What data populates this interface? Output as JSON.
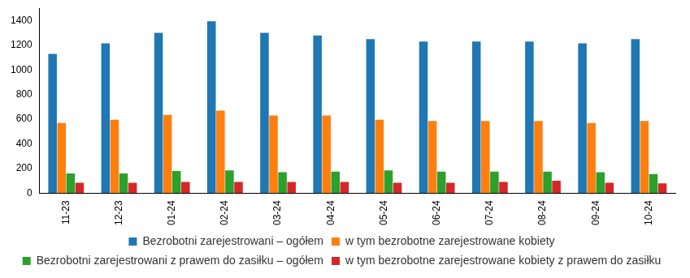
{
  "chart_data": {
    "type": "bar",
    "categories": [
      "11-23",
      "12-23",
      "01-24",
      "02-24",
      "03-24",
      "04-24",
      "05-24",
      "06-24",
      "07-24",
      "08-24",
      "09-24",
      "10-24"
    ],
    "series": [
      {
        "name": "Bezrobotni zarejestrowani – ogółem",
        "color": "#1f77b4",
        "values": [
          1130,
          1215,
          1300,
          1395,
          1300,
          1280,
          1250,
          1230,
          1230,
          1230,
          1215,
          1250
        ]
      },
      {
        "name": "w tym bezrobotne zarejestrowane kobiety",
        "color": "#ff7f0e",
        "values": [
          570,
          595,
          635,
          670,
          630,
          630,
          595,
          585,
          585,
          585,
          570,
          585
        ]
      },
      {
        "name": "Bezrobotni zarejestrowani z prawem do zasiłku – ogółem",
        "color": "#2ca02c",
        "values": [
          160,
          160,
          180,
          185,
          170,
          175,
          185,
          175,
          175,
          175,
          170,
          155
        ]
      },
      {
        "name": "w tym bezrobotne zarejestrowane kobiety z prawem do zasiłku",
        "color": "#d62728",
        "values": [
          85,
          85,
          90,
          90,
          90,
          90,
          85,
          85,
          90,
          100,
          85,
          80
        ]
      }
    ],
    "ylim": [
      0,
      1500
    ],
    "yticks": [
      0,
      200,
      400,
      600,
      800,
      1000,
      1200,
      1400
    ],
    "grid": false,
    "legend": "bottom"
  }
}
